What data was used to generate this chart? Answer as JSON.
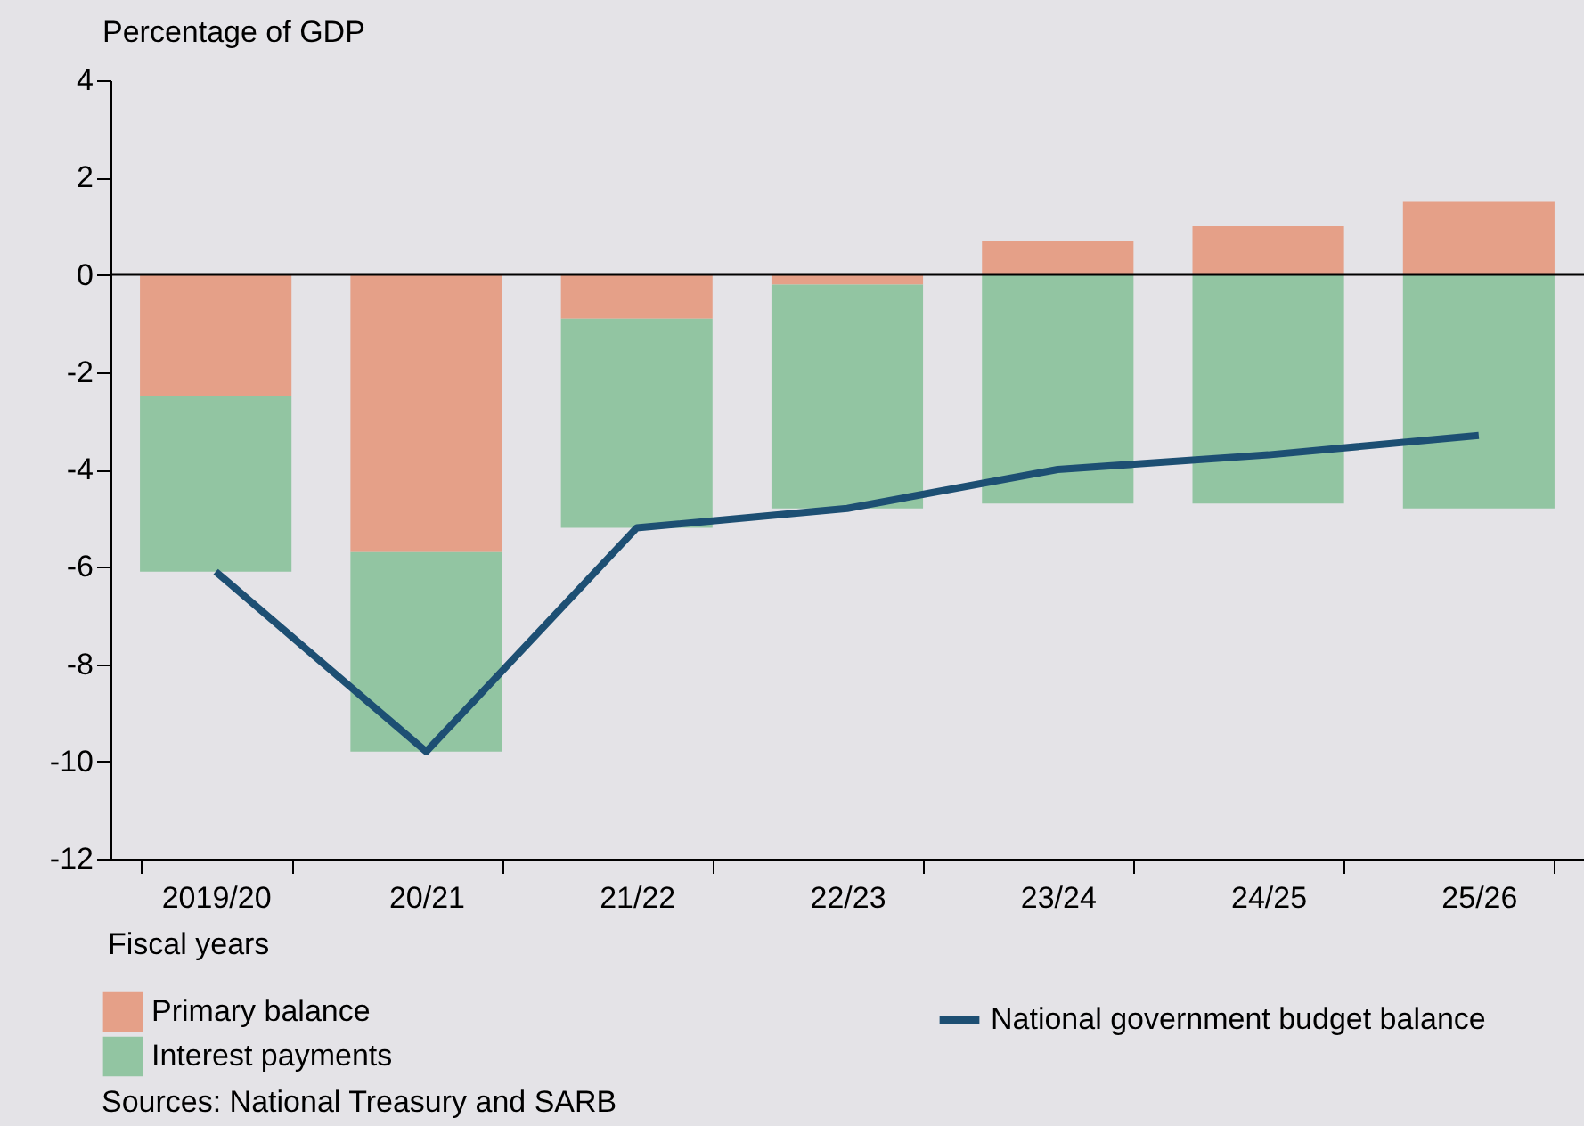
{
  "chart_data": {
    "type": "bar",
    "stacked": true,
    "ylabel": "Percentage of GDP",
    "xlabel": "Fiscal years",
    "categories": [
      "2019/20",
      "20/21",
      "21/22",
      "22/23",
      "23/24",
      "24/25",
      "25/26"
    ],
    "series": [
      {
        "name": "Primary balance",
        "color": "#e5a088",
        "values": [
          -2.5,
          -5.7,
          -0.9,
          -0.2,
          0.7,
          1.0,
          1.5
        ]
      },
      {
        "name": "Interest payments",
        "color": "#92c5a2",
        "values": [
          -3.6,
          -4.1,
          -4.3,
          -4.6,
          -4.7,
          -4.7,
          -4.8
        ]
      },
      {
        "name": "National government budget balance",
        "color": "#1d4f73",
        "type": "line",
        "values": [
          -6.1,
          -9.8,
          -5.2,
          -4.8,
          -4.0,
          -3.7,
          -3.3
        ]
      }
    ],
    "ylim": [
      -12,
      4
    ],
    "yticks": [
      -12,
      -10,
      -8,
      -6,
      -4,
      -2,
      0,
      2,
      4
    ],
    "ref_lines": [
      {
        "axis": "y",
        "value": 0,
        "color": "#000000"
      }
    ],
    "grid": false,
    "legend": "bottom",
    "marker": "none",
    "line_style": "solid",
    "annotations": [
      "Sources: National Treasury and SARB"
    ]
  }
}
